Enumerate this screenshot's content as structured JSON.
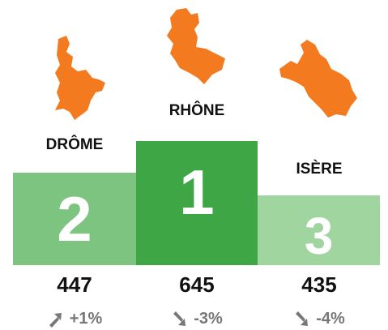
{
  "podium": [
    {
      "name": "DRÔME",
      "rank": 2,
      "value": 447,
      "change": "+1%"
    },
    {
      "name": "RHÔNE",
      "rank": 1,
      "value": 645,
      "change": "-3%"
    },
    {
      "name": "ISÈRE",
      "rank": 3,
      "value": 435,
      "change": "-4%"
    }
  ]
}
